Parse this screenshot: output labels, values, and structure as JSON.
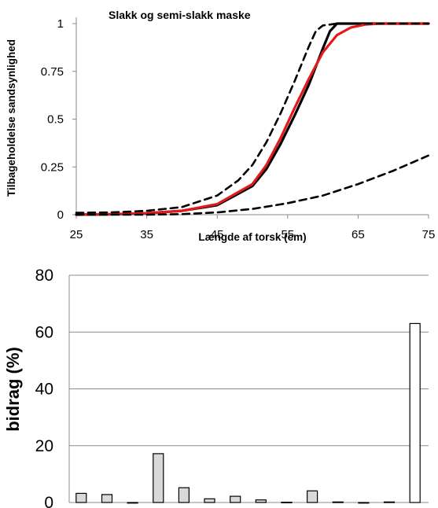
{
  "chart_data": [
    {
      "type": "line",
      "title": "Slakk og semi-slakk maske",
      "xlabel": "Længde af torsk (cm)",
      "ylabel": "Tilbageholdelse sandsynlighed",
      "xlim": [
        25,
        75
      ],
      "ylim": [
        0,
        1
      ],
      "xticks": [
        "25",
        "35",
        "45",
        "55",
        "65",
        "75"
      ],
      "yticks": [
        "0",
        "0.25",
        "0.5",
        "0.75",
        "1"
      ],
      "grid": false,
      "legend": "none",
      "series": [
        {
          "color": "#000000",
          "style": "solid",
          "x": [
            25,
            30,
            35,
            40,
            45,
            50,
            52,
            54,
            56,
            58,
            60,
            61,
            62,
            65,
            70,
            75
          ],
          "y": [
            0.0,
            0.002,
            0.008,
            0.02,
            0.05,
            0.15,
            0.24,
            0.37,
            0.52,
            0.68,
            0.87,
            0.96,
            1.0,
            1.0,
            1.0,
            1.0
          ]
        },
        {
          "color": "#e31a1c",
          "style": "solid",
          "x": [
            25,
            30,
            35,
            40,
            45,
            50,
            52,
            54,
            56,
            58,
            60,
            62,
            64,
            66,
            68,
            70,
            75
          ],
          "y": [
            0.0,
            0.003,
            0.008,
            0.02,
            0.055,
            0.16,
            0.26,
            0.4,
            0.56,
            0.71,
            0.85,
            0.94,
            0.98,
            0.995,
            1.0,
            1.0,
            1.0
          ]
        },
        {
          "color": "#000000",
          "style": "dashed",
          "x": [
            25,
            30,
            35,
            40,
            45,
            48,
            50,
            52,
            54,
            56,
            58,
            59,
            60,
            62,
            65,
            70,
            75
          ],
          "y": [
            0.01,
            0.012,
            0.02,
            0.04,
            0.1,
            0.18,
            0.26,
            0.38,
            0.53,
            0.7,
            0.88,
            0.96,
            0.99,
            1.0,
            1.0,
            1.0,
            1.0
          ]
        },
        {
          "color": "#000000",
          "style": "dashed",
          "x": [
            25,
            35,
            40,
            45,
            50,
            55,
            60,
            65,
            70,
            75
          ],
          "y": [
            0.0,
            0.0,
            0.003,
            0.012,
            0.03,
            0.06,
            0.1,
            0.16,
            0.23,
            0.31
          ]
        }
      ]
    },
    {
      "type": "bar",
      "ylabel": "bidrag (%)",
      "ylim": [
        0,
        80
      ],
      "yticks": [
        "0",
        "20",
        "40",
        "60",
        "80"
      ],
      "grid": true,
      "legend": "none",
      "bars": [
        {
          "value": 3.2,
          "fill": "#d9d9d9"
        },
        {
          "value": 2.8,
          "fill": "#d9d9d9"
        },
        {
          "value": 0,
          "fill": "#d9d9d9"
        },
        {
          "value": 17.2,
          "fill": "#d9d9d9"
        },
        {
          "value": 5.2,
          "fill": "#d9d9d9"
        },
        {
          "value": 1.3,
          "fill": "#d9d9d9"
        },
        {
          "value": 2.2,
          "fill": "#d9d9d9"
        },
        {
          "value": 0.9,
          "fill": "#d9d9d9"
        },
        {
          "value": 0.1,
          "fill": "#d9d9d9"
        },
        {
          "value": 4.1,
          "fill": "#d9d9d9"
        },
        {
          "value": 0.2,
          "fill": "#d9d9d9"
        },
        {
          "value": 0,
          "fill": "#d9d9d9"
        },
        {
          "value": 0.2,
          "fill": "#d9d9d9"
        },
        {
          "value": 63,
          "fill": "#ffffff"
        }
      ]
    }
  ]
}
